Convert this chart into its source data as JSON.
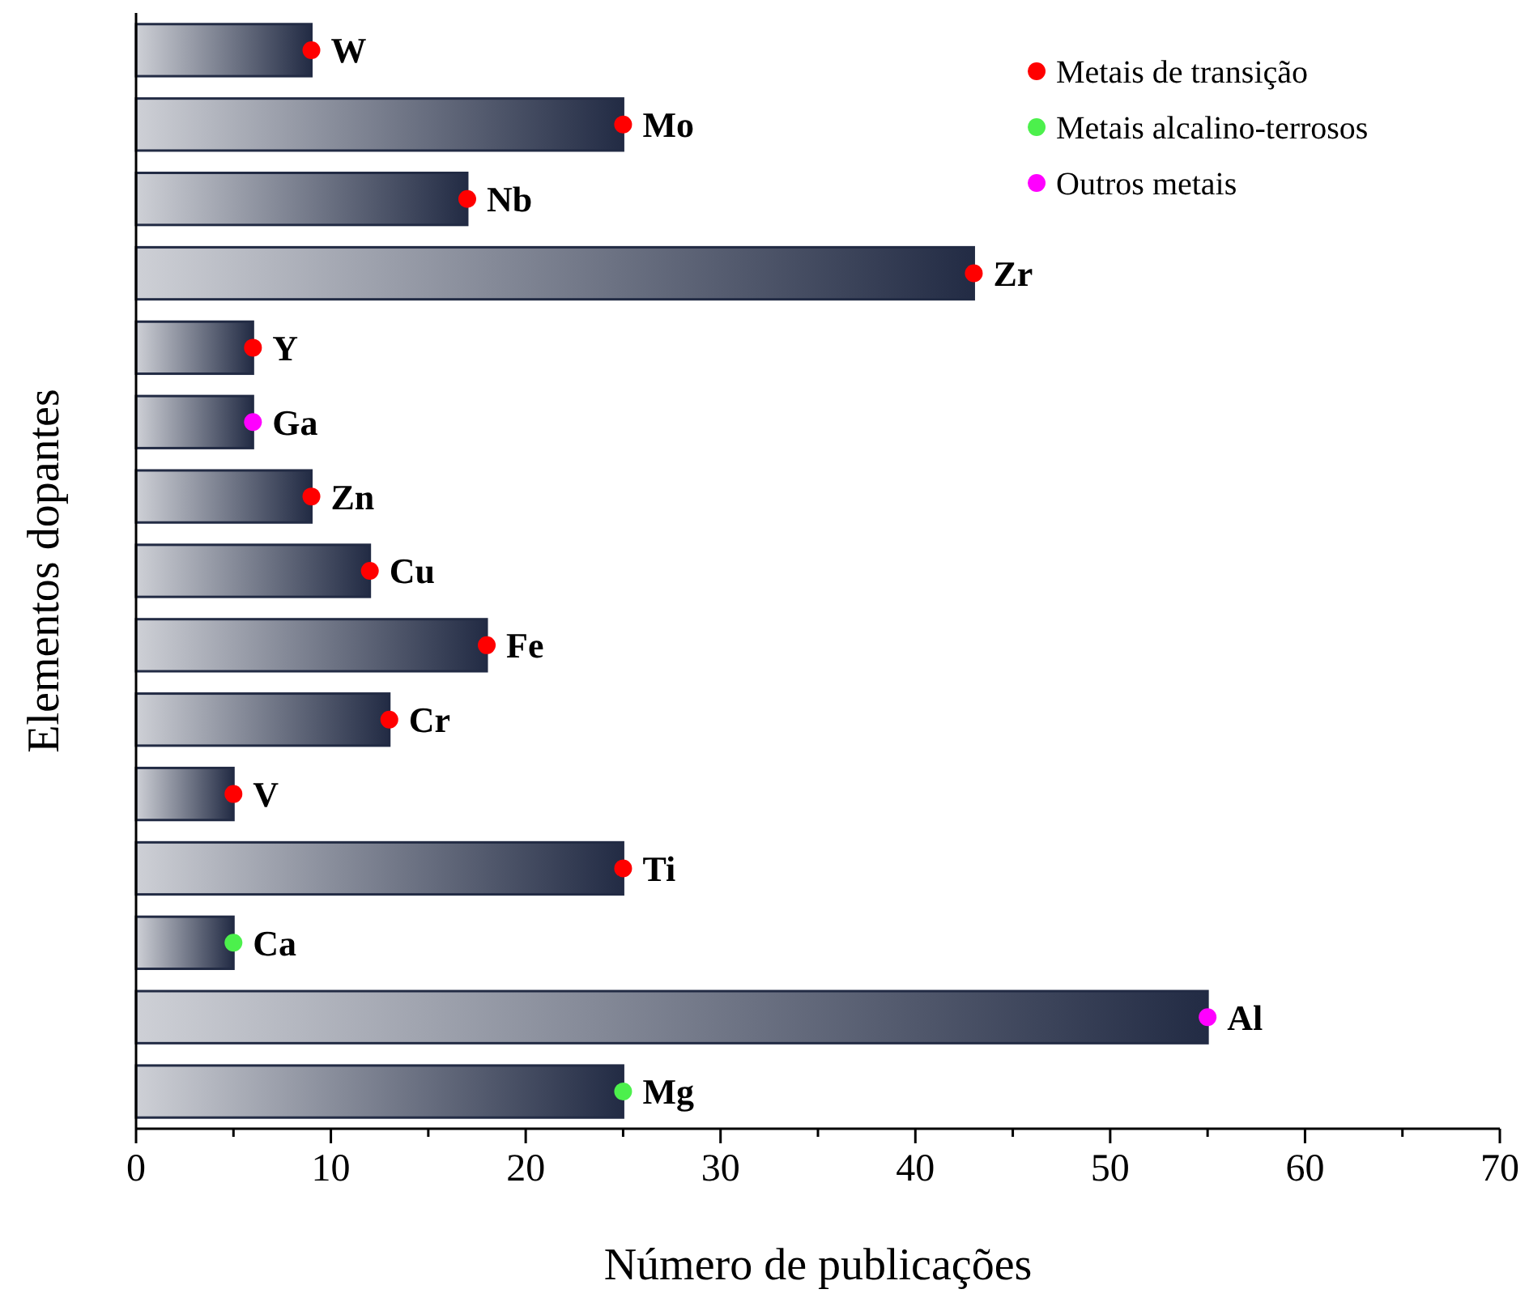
{
  "chart_data": {
    "type": "bar",
    "orientation": "horizontal",
    "xlabel": "Número de publicações",
    "ylabel": "Elementos dopantes",
    "categories": [
      "W",
      "Mo",
      "Nb",
      "Zr",
      "Y",
      "Ga",
      "Zn",
      "Cu",
      "Fe",
      "Cr",
      "V",
      "Ti",
      "Ca",
      "Al",
      "Mg"
    ],
    "series": [
      {
        "color": "#222b44",
        "values": [
          9,
          25,
          17,
          43,
          6,
          6,
          9,
          12,
          18,
          13,
          5,
          25,
          5,
          55,
          25
        ]
      },
      {
        "type": "scatter",
        "name": "Metais de transição",
        "color": "#ff0000",
        "values": [
          9,
          25,
          17,
          43,
          6,
          null,
          9,
          12,
          18,
          13,
          5,
          25,
          null,
          null,
          null
        ]
      },
      {
        "type": "scatter",
        "name": "Metais alcalino-terrosos",
        "color": "#4cf04c",
        "values": [
          null,
          null,
          null,
          null,
          null,
          null,
          null,
          null,
          null,
          null,
          null,
          null,
          5,
          null,
          25
        ]
      },
      {
        "type": "scatter",
        "name": "Outros metais",
        "color": "#ff00ff",
        "values": [
          null,
          null,
          null,
          null,
          null,
          6,
          null,
          null,
          null,
          null,
          null,
          null,
          null,
          55,
          null
        ]
      }
    ],
    "xlim": [
      0,
      70
    ],
    "xticks": [
      0,
      {
        "value": 5,
        "label": null
      },
      10,
      {
        "value": 15,
        "label": null
      },
      20,
      {
        "value": 25,
        "label": null
      },
      30,
      {
        "value": 35,
        "label": null
      },
      40,
      {
        "value": 45,
        "label": null
      },
      50,
      {
        "value": 55,
        "label": null
      },
      60,
      {
        "value": 65,
        "label": null
      },
      70
    ],
    "grid": false,
    "legend": "top right",
    "marker": "circle"
  }
}
